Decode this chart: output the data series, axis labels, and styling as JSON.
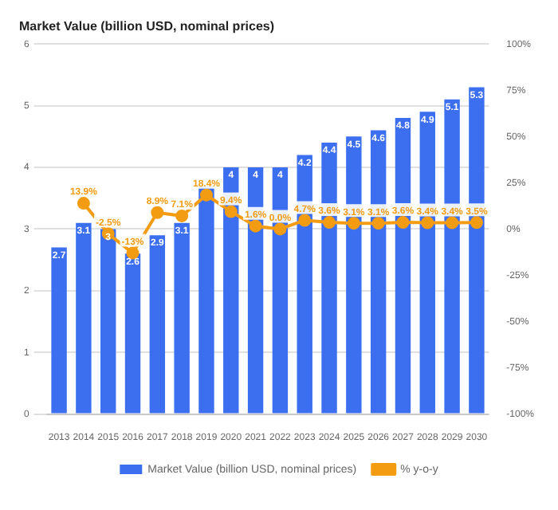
{
  "chart_data": {
    "type": "bar",
    "title": "Market Value (billion USD, nominal prices)",
    "categories": [
      "2013",
      "2014",
      "2015",
      "2016",
      "2017",
      "2018",
      "2019",
      "2020",
      "2021",
      "2022",
      "2023",
      "2024",
      "2025",
      "2026",
      "2027",
      "2028",
      "2029",
      "2030"
    ],
    "series": [
      {
        "name": "Market Value (billion USD, nominal prices)",
        "color": "#3b6ff0",
        "values": [
          2.7,
          3.1,
          3.0,
          2.6,
          2.9,
          3.1,
          3.7,
          4,
          4,
          4,
          4.2,
          4.4,
          4.5,
          4.6,
          4.8,
          4.9,
          5.1,
          5.3
        ],
        "value_labels": [
          "2.7",
          "3.1",
          "3",
          "2.6",
          "2.9",
          "3.1",
          null,
          "4",
          "4",
          "4",
          "4.2",
          "4.4",
          "4.5",
          "4.6",
          "4.8",
          "4.9",
          "5.1",
          "5.3"
        ]
      },
      {
        "name": "% y-o-y",
        "type": "line",
        "axis": "y2",
        "color": "#f39c12",
        "values": [
          null,
          13.9,
          -2.5,
          -13,
          8.9,
          7.1,
          18.4,
          9.4,
          1.6,
          0.0,
          4.7,
          3.6,
          3.1,
          3.1,
          3.6,
          3.4,
          3.4,
          3.5
        ],
        "value_labels": [
          null,
          "13.9%",
          "-2.5%",
          "-13%",
          "8.9%",
          "7.1%",
          "18.4%",
          "9.4%",
          "1.6%",
          "0.0%",
          "4.7%",
          "3.6%",
          "3.1%",
          "3.1%",
          "3.6%",
          "3.4%",
          "3.4%",
          "3.5%"
        ]
      }
    ],
    "ylim": [
      0,
      6
    ],
    "yticks": [
      0,
      1,
      2,
      3,
      4,
      5,
      6
    ],
    "y2lim": [
      -100,
      100
    ],
    "y2ticks": [
      {
        "value": -100,
        "label": "-100%"
      },
      {
        "value": -75,
        "label": "-75%"
      },
      {
        "value": -50,
        "label": "-50%"
      },
      {
        "value": -25,
        "label": "-25%"
      },
      {
        "value": 0,
        "label": "0%"
      },
      {
        "value": 25,
        "label": "25%"
      },
      {
        "value": 50,
        "label": "50%"
      },
      {
        "value": 75,
        "label": "75%"
      },
      {
        "value": 100,
        "label": "100%"
      }
    ],
    "grid": "y",
    "legend": "bottom",
    "marker": "circle"
  }
}
